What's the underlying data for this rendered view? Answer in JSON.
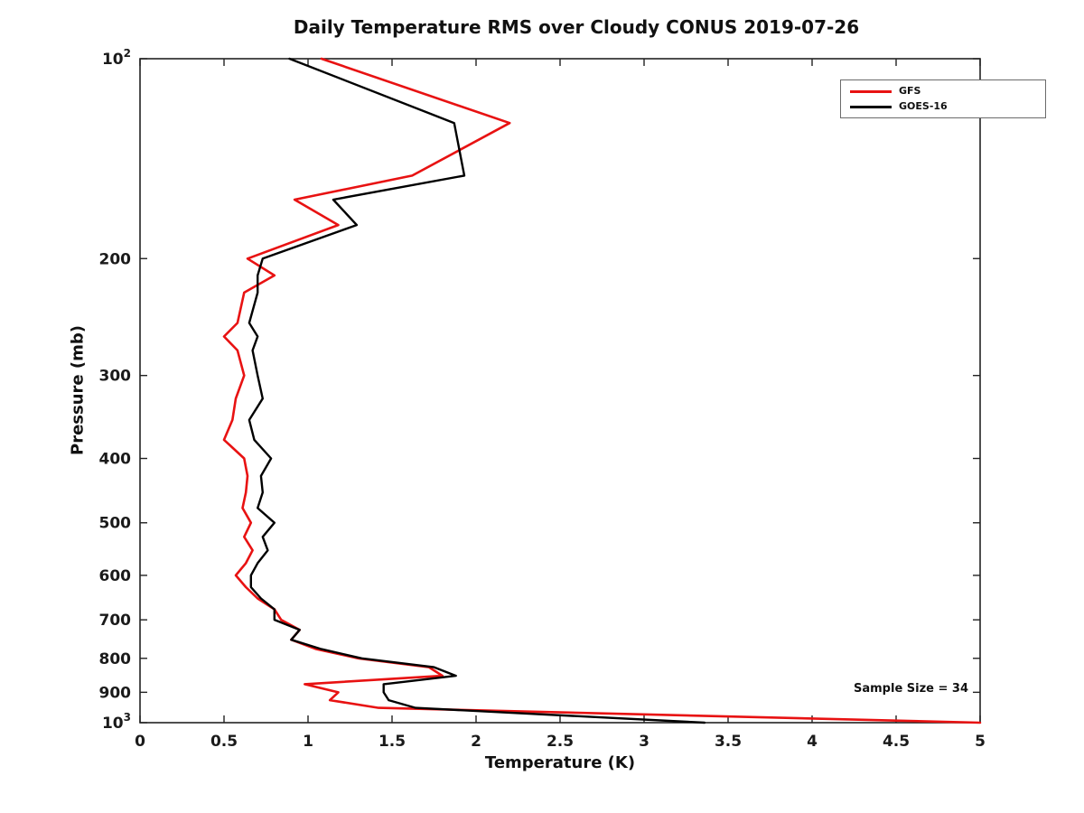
{
  "page": {
    "background": "#ffffff"
  },
  "chart_data": {
    "type": "line",
    "title": "Daily Temperature RMS over Cloudy CONUS 2019-07-26",
    "xlabel": "Temperature (K)",
    "ylabel": "Pressure (mb)",
    "xlim": [
      0,
      5
    ],
    "ylim": [
      100,
      1000
    ],
    "y_scale": "log",
    "y_direction": "increasing-downward",
    "grid": false,
    "legend_position": "top-right",
    "annotation": "Sample Size = 34",
    "x_ticks": [
      {
        "v": 0,
        "label": "0"
      },
      {
        "v": 0.5,
        "label": "0.5"
      },
      {
        "v": 1,
        "label": "1"
      },
      {
        "v": 1.5,
        "label": "1.5"
      },
      {
        "v": 2,
        "label": "2"
      },
      {
        "v": 2.5,
        "label": "2.5"
      },
      {
        "v": 3,
        "label": "3"
      },
      {
        "v": 3.5,
        "label": "3.5"
      },
      {
        "v": 4,
        "label": "4"
      },
      {
        "v": 4.5,
        "label": "4.5"
      },
      {
        "v": 5,
        "label": "5"
      }
    ],
    "y_ticks": [
      {
        "v": 100,
        "label": "10^2"
      },
      {
        "v": 200,
        "label": "200"
      },
      {
        "v": 300,
        "label": "300"
      },
      {
        "v": 400,
        "label": "400"
      },
      {
        "v": 500,
        "label": "500"
      },
      {
        "v": 600,
        "label": "600"
      },
      {
        "v": 700,
        "label": "700"
      },
      {
        "v": 800,
        "label": "800"
      },
      {
        "v": 900,
        "label": "900"
      },
      {
        "v": 1000,
        "label": "10^3"
      }
    ],
    "pressure_levels": [
      100,
      125,
      150,
      163,
      178,
      200,
      212,
      225,
      250,
      262,
      275,
      300,
      325,
      350,
      375,
      400,
      425,
      450,
      475,
      500,
      525,
      550,
      575,
      600,
      625,
      650,
      675,
      700,
      725,
      750,
      775,
      800,
      825,
      850,
      875,
      900,
      925,
      950,
      1000
    ],
    "series": [
      {
        "name": "GFS",
        "color": "#e81212",
        "line_width": 2.6,
        "values": [
          1.08,
          2.2,
          1.62,
          0.92,
          1.18,
          0.64,
          0.8,
          0.62,
          0.58,
          0.5,
          0.58,
          0.62,
          0.57,
          0.55,
          0.5,
          0.62,
          0.64,
          0.63,
          0.61,
          0.66,
          0.62,
          0.67,
          0.63,
          0.57,
          0.63,
          0.7,
          0.8,
          0.84,
          0.95,
          0.9,
          1.05,
          1.3,
          1.72,
          1.8,
          0.98,
          1.18,
          1.13,
          1.42,
          5.0
        ]
      },
      {
        "name": "GOES-16",
        "color": "#000000",
        "line_width": 2.4,
        "values": [
          0.89,
          1.87,
          1.93,
          1.15,
          1.29,
          0.73,
          0.7,
          0.7,
          0.65,
          0.7,
          0.67,
          0.7,
          0.73,
          0.65,
          0.68,
          0.78,
          0.72,
          0.73,
          0.7,
          0.8,
          0.73,
          0.76,
          0.7,
          0.66,
          0.66,
          0.72,
          0.8,
          0.8,
          0.95,
          0.9,
          1.08,
          1.32,
          1.75,
          1.88,
          1.45,
          1.45,
          1.48,
          1.64,
          3.36
        ]
      }
    ]
  }
}
